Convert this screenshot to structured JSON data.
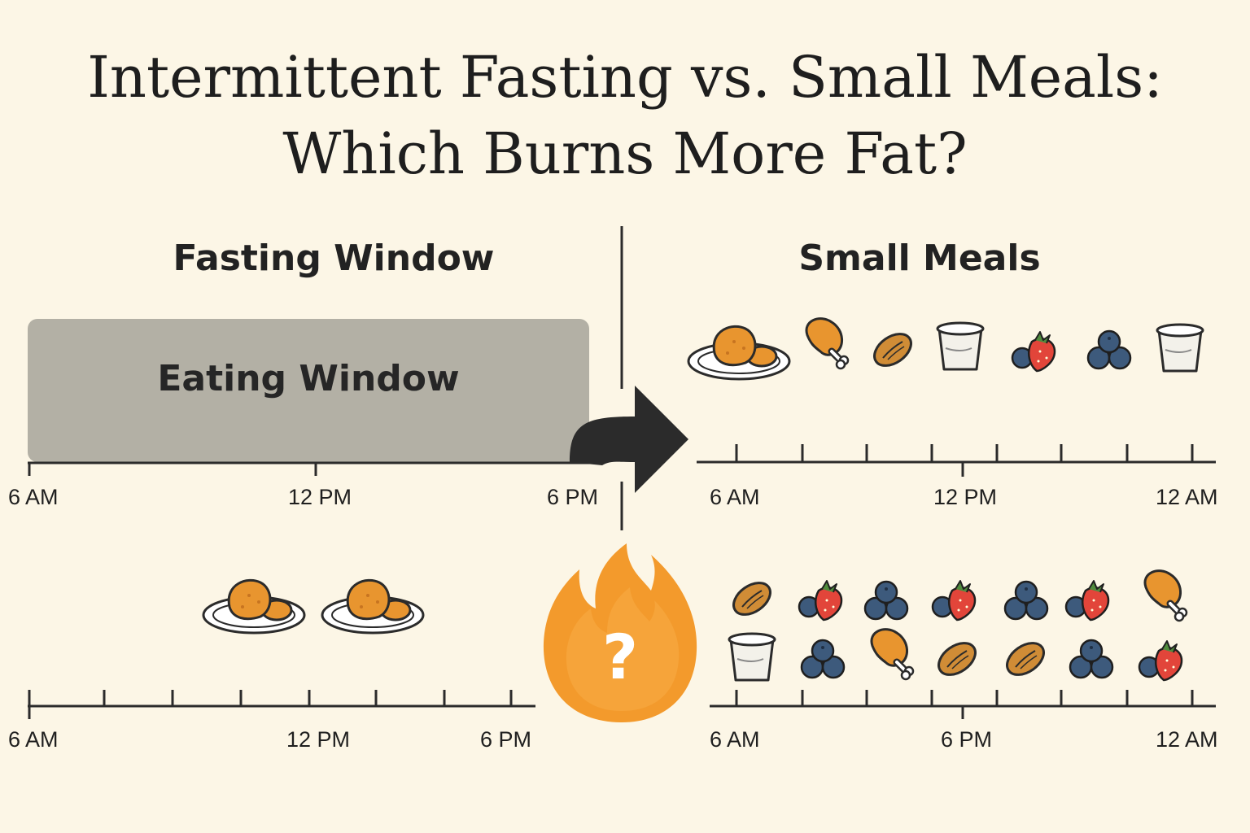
{
  "title": {
    "line1": "Intermittent Fasting vs. Small Meals:",
    "line2": "Which Burns More Fat?"
  },
  "left": {
    "heading": "Fasting Window",
    "bar_label": "Eating Window",
    "top_axis": [
      "6 AM",
      "12 PM",
      "6 PM"
    ],
    "bottom_axis": [
      "6 AM",
      "12 PM",
      "6 PM"
    ],
    "meals": [
      "chicken-plate-icon",
      "chicken-plate-icon"
    ]
  },
  "right": {
    "heading": "Small Meals",
    "top_axis": [
      "6 AM",
      "12 PM",
      "12 AM"
    ],
    "bottom_axis": [
      "6 AM",
      "6 PM",
      "12 AM"
    ],
    "top_foods": [
      "chicken-plate-icon",
      "drumstick-icon",
      "almond-icon",
      "yogurt-cup-icon",
      "berries-icon",
      "blueberries-icon",
      "yogurt-cup-icon"
    ],
    "bottom_foods_row1": [
      "almond-icon",
      "berries-icon",
      "blueberries-icon",
      "berries-icon",
      "blueberries-icon",
      "berries-icon",
      "drumstick-icon"
    ],
    "bottom_foods_row2": [
      "yogurt-cup-icon",
      "blueberries-icon",
      "drumstick-icon",
      "almond-icon",
      "almond-icon",
      "blueberries-icon",
      "berries-icon"
    ]
  },
  "center": {
    "flame_symbol": "?"
  },
  "colors": {
    "background": "#fcf6e6",
    "eating_bar": "#b3b0a5",
    "food_orange": "#e8952f",
    "blueberry": "#3d5a7c",
    "strawberry": "#e2453a",
    "flame": "#f39a2c"
  }
}
